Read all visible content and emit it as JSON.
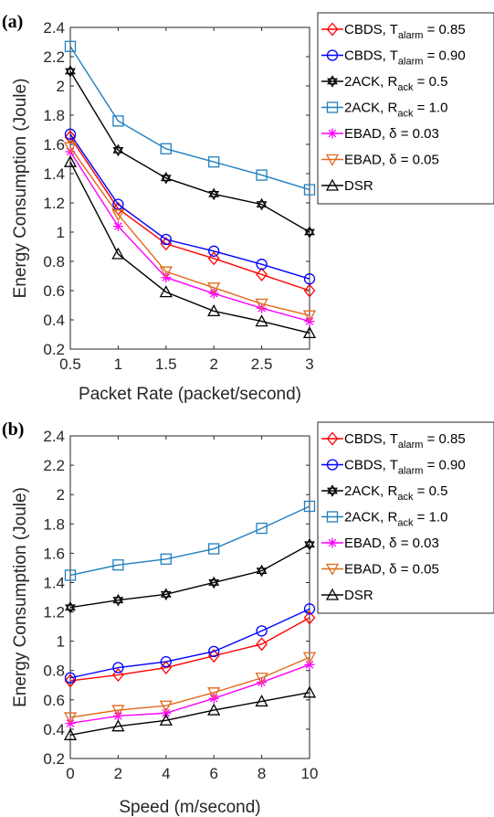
{
  "chart_data": [
    {
      "panel_label": "(a)",
      "type": "line",
      "xlabel": "Packet Rate (packet/second)",
      "ylabel": "Energy Consumption (Joule)",
      "xlim": [
        0.5,
        3
      ],
      "ylim": [
        0.2,
        2.4
      ],
      "xticks": [
        "0.5",
        "1",
        "1.5",
        "2",
        "2.5",
        "3"
      ],
      "yticks": [
        "0.2",
        "0.4",
        "0.6",
        "0.8",
        "1",
        "1.2",
        "1.4",
        "1.6",
        "1.8",
        "2",
        "2.2",
        "2.4"
      ],
      "grid": false,
      "legend_placement": "outside-right",
      "x": [
        0.5,
        1,
        1.5,
        2,
        2.5,
        3
      ],
      "series": [
        {
          "name": "CBDS, T",
          "sub": "alarm",
          "suffix": " = 0.85",
          "color": "#ff0000",
          "marker": "diamond",
          "values": [
            1.65,
            1.16,
            0.92,
            0.82,
            0.71,
            0.6
          ]
        },
        {
          "name": "CBDS, T",
          "sub": "alarm",
          "suffix": " = 0.90",
          "color": "#0000ff",
          "marker": "circle",
          "values": [
            1.67,
            1.19,
            0.95,
            0.87,
            0.78,
            0.68
          ]
        },
        {
          "name": "2ACK, R",
          "sub": "ack",
          "suffix": " = 0.5",
          "color": "#000000",
          "marker": "hexagram",
          "values": [
            2.1,
            1.56,
            1.37,
            1.26,
            1.19,
            1.0
          ]
        },
        {
          "name": "2ACK, R",
          "sub": "ack",
          "suffix": " = 1.0",
          "color": "#1f7fc0",
          "marker": "square",
          "values": [
            2.27,
            1.76,
            1.57,
            1.48,
            1.39,
            1.29
          ]
        },
        {
          "name": "EBAD, δ = 0.03",
          "sub": "",
          "suffix": "",
          "color": "#ff00ff",
          "marker": "asterisk",
          "values": [
            1.55,
            1.04,
            0.69,
            0.58,
            0.48,
            0.39
          ]
        },
        {
          "name": "EBAD, δ = 0.05",
          "sub": "",
          "suffix": "",
          "color": "#e06a1a",
          "marker": "triangle-down",
          "values": [
            1.58,
            1.12,
            0.73,
            0.62,
            0.51,
            0.43
          ]
        },
        {
          "name": "DSR",
          "sub": "",
          "suffix": "",
          "color": "#000000",
          "marker": "triangle-up",
          "values": [
            1.48,
            0.85,
            0.59,
            0.46,
            0.39,
            0.31
          ]
        }
      ]
    },
    {
      "panel_label": "(b)",
      "type": "line",
      "xlabel": "Speed (m/second)",
      "ylabel": "Energy Consumption (Joule)",
      "xlim": [
        0,
        10
      ],
      "ylim": [
        0.2,
        2.4
      ],
      "xticks": [
        "0",
        "2",
        "4",
        "6",
        "8",
        "10"
      ],
      "yticks": [
        "0.2",
        "0.4",
        "0.6",
        "0.8",
        "1",
        "1.2",
        "1.4",
        "1.6",
        "1.8",
        "2",
        "2.2",
        "2.4"
      ],
      "grid": false,
      "legend_placement": "outside-right",
      "x": [
        0,
        2,
        4,
        6,
        8,
        10
      ],
      "series": [
        {
          "name": "CBDS, T",
          "sub": "alarm",
          "suffix": " = 0.85",
          "color": "#ff0000",
          "marker": "diamond",
          "values": [
            0.73,
            0.77,
            0.82,
            0.9,
            0.98,
            1.16
          ]
        },
        {
          "name": "CBDS, T",
          "sub": "alarm",
          "suffix": " = 0.90",
          "color": "#0000ff",
          "marker": "circle",
          "values": [
            0.75,
            0.82,
            0.86,
            0.93,
            1.07,
            1.22
          ]
        },
        {
          "name": "2ACK, R",
          "sub": "ack",
          "suffix": " = 0.5",
          "color": "#000000",
          "marker": "hexagram",
          "values": [
            1.23,
            1.28,
            1.32,
            1.4,
            1.48,
            1.66
          ]
        },
        {
          "name": "2ACK, R",
          "sub": "ack",
          "suffix": " = 1.0",
          "color": "#1f7fc0",
          "marker": "square",
          "values": [
            1.45,
            1.52,
            1.56,
            1.63,
            1.77,
            1.92
          ]
        },
        {
          "name": "EBAD, δ = 0.03",
          "sub": "",
          "suffix": "",
          "color": "#ff00ff",
          "marker": "asterisk",
          "values": [
            0.44,
            0.49,
            0.51,
            0.61,
            0.72,
            0.84
          ]
        },
        {
          "name": "EBAD, δ = 0.05",
          "sub": "",
          "suffix": "",
          "color": "#e06a1a",
          "marker": "triangle-down",
          "values": [
            0.48,
            0.53,
            0.56,
            0.65,
            0.75,
            0.89
          ]
        },
        {
          "name": "DSR",
          "sub": "",
          "suffix": "",
          "color": "#000000",
          "marker": "triangle-up",
          "values": [
            0.36,
            0.42,
            0.46,
            0.53,
            0.59,
            0.65
          ]
        }
      ]
    }
  ]
}
